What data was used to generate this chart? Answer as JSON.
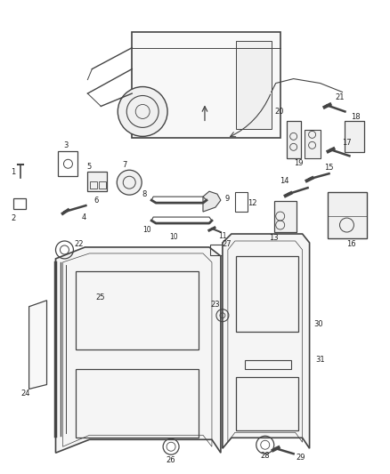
{
  "bg_color": "#ffffff",
  "line_color": "#444444",
  "figsize": [
    4.38,
    5.33
  ],
  "dpi": 100
}
